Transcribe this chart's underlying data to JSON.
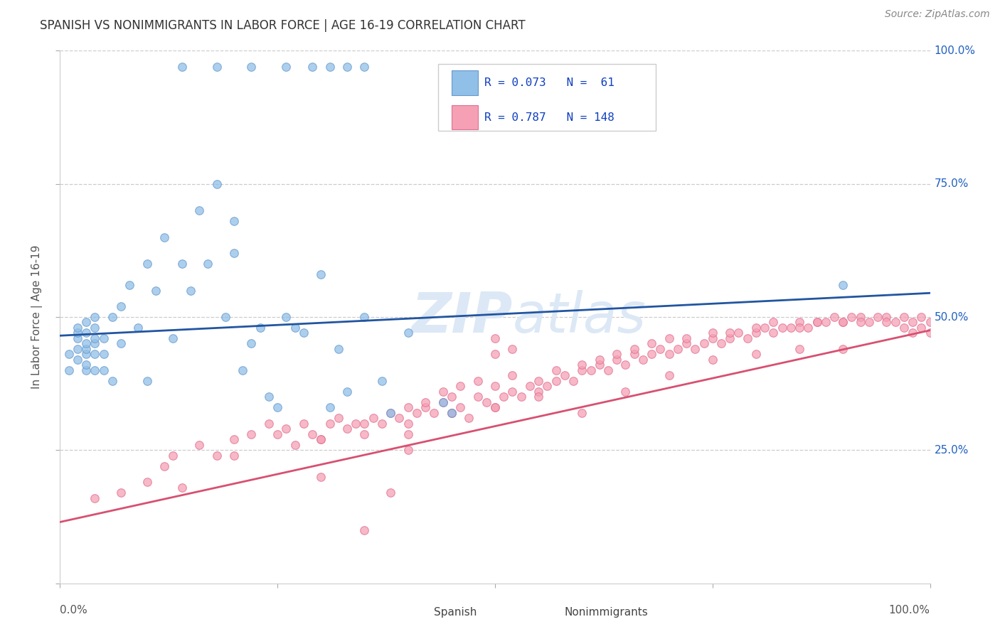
{
  "title": "SPANISH VS NONIMMIGRANTS IN LABOR FORCE | AGE 16-19 CORRELATION CHART",
  "source": "Source: ZipAtlas.com",
  "ylabel": "In Labor Force | Age 16-19",
  "xlim": [
    0.0,
    1.0
  ],
  "ylim": [
    0.0,
    1.0
  ],
  "spanish_color": "#90bfe8",
  "spanish_edge_color": "#6699cc",
  "nonimm_color": "#f5a0b5",
  "nonimm_edge_color": "#e07090",
  "spanish_line_color": "#2255a0",
  "nonimm_line_color": "#d85070",
  "background_color": "#ffffff",
  "grid_color": "#cccccc",
  "title_color": "#333333",
  "right_label_color": "#2060c0",
  "watermark_color": "#dce8f5",
  "legend_text_color": "#1040c0",
  "marker_size": 70,
  "spanish_line_x0": 0.0,
  "spanish_line_y0": 0.465,
  "spanish_line_x1": 1.0,
  "spanish_line_y1": 0.545,
  "nonimm_line_x0": 0.0,
  "nonimm_line_y0": 0.115,
  "nonimm_line_x1": 1.0,
  "nonimm_line_y1": 0.475,
  "spanish_x": [
    0.01,
    0.01,
    0.02,
    0.02,
    0.02,
    0.02,
    0.02,
    0.03,
    0.03,
    0.03,
    0.03,
    0.03,
    0.03,
    0.03,
    0.04,
    0.04,
    0.04,
    0.04,
    0.04,
    0.04,
    0.05,
    0.05,
    0.05,
    0.06,
    0.06,
    0.07,
    0.07,
    0.08,
    0.09,
    0.1,
    0.1,
    0.11,
    0.12,
    0.13,
    0.14,
    0.15,
    0.16,
    0.17,
    0.18,
    0.19,
    0.2,
    0.2,
    0.21,
    0.22,
    0.23,
    0.24,
    0.25,
    0.26,
    0.27,
    0.28,
    0.3,
    0.31,
    0.32,
    0.33,
    0.35,
    0.37,
    0.38,
    0.4,
    0.44,
    0.45,
    0.9
  ],
  "spanish_y": [
    0.4,
    0.43,
    0.42,
    0.44,
    0.46,
    0.47,
    0.48,
    0.4,
    0.41,
    0.43,
    0.44,
    0.45,
    0.47,
    0.49,
    0.4,
    0.43,
    0.45,
    0.46,
    0.48,
    0.5,
    0.4,
    0.43,
    0.46,
    0.38,
    0.5,
    0.45,
    0.52,
    0.56,
    0.48,
    0.38,
    0.6,
    0.55,
    0.65,
    0.46,
    0.6,
    0.55,
    0.7,
    0.6,
    0.75,
    0.5,
    0.62,
    0.68,
    0.4,
    0.45,
    0.48,
    0.35,
    0.33,
    0.5,
    0.48,
    0.47,
    0.58,
    0.33,
    0.44,
    0.36,
    0.5,
    0.38,
    0.32,
    0.47,
    0.34,
    0.32,
    0.56
  ],
  "spanish_top_x": [
    0.14,
    0.18,
    0.22,
    0.26,
    0.29,
    0.31,
    0.33,
    0.35
  ],
  "spanish_top_y": [
    0.97,
    0.97,
    0.97,
    0.97,
    0.97,
    0.97,
    0.97,
    0.97
  ],
  "nonimm_x": [
    0.04,
    0.07,
    0.1,
    0.12,
    0.13,
    0.14,
    0.16,
    0.18,
    0.2,
    0.22,
    0.24,
    0.25,
    0.26,
    0.27,
    0.28,
    0.29,
    0.3,
    0.31,
    0.32,
    0.33,
    0.34,
    0.35,
    0.36,
    0.37,
    0.38,
    0.39,
    0.4,
    0.41,
    0.42,
    0.43,
    0.44,
    0.45,
    0.46,
    0.47,
    0.48,
    0.49,
    0.5,
    0.51,
    0.52,
    0.53,
    0.54,
    0.55,
    0.56,
    0.57,
    0.58,
    0.59,
    0.6,
    0.61,
    0.62,
    0.63,
    0.64,
    0.65,
    0.66,
    0.67,
    0.68,
    0.69,
    0.7,
    0.71,
    0.72,
    0.73,
    0.74,
    0.75,
    0.76,
    0.77,
    0.78,
    0.79,
    0.8,
    0.81,
    0.82,
    0.83,
    0.84,
    0.85,
    0.86,
    0.87,
    0.88,
    0.89,
    0.9,
    0.91,
    0.92,
    0.93,
    0.94,
    0.95,
    0.96,
    0.97,
    0.98,
    0.99,
    1.0,
    0.5,
    0.5,
    0.52,
    0.3,
    0.35,
    0.4,
    0.4,
    0.42,
    0.44,
    0.45,
    0.46,
    0.48,
    0.5,
    0.52,
    0.55,
    0.57,
    0.6,
    0.62,
    0.64,
    0.66,
    0.68,
    0.7,
    0.72,
    0.75,
    0.77,
    0.8,
    0.82,
    0.85,
    0.87,
    0.9,
    0.92,
    0.95,
    0.97,
    0.98,
    0.99,
    1.0,
    0.2,
    0.3,
    0.35,
    0.38,
    0.4,
    0.45,
    0.5,
    0.55,
    0.6,
    0.65,
    0.7,
    0.75,
    0.8,
    0.85,
    0.9
  ],
  "nonimm_y": [
    0.16,
    0.17,
    0.19,
    0.22,
    0.24,
    0.18,
    0.26,
    0.24,
    0.27,
    0.28,
    0.3,
    0.28,
    0.29,
    0.26,
    0.3,
    0.28,
    0.27,
    0.3,
    0.31,
    0.29,
    0.3,
    0.28,
    0.31,
    0.3,
    0.32,
    0.31,
    0.3,
    0.32,
    0.33,
    0.32,
    0.34,
    0.32,
    0.33,
    0.31,
    0.35,
    0.34,
    0.33,
    0.35,
    0.36,
    0.35,
    0.37,
    0.36,
    0.37,
    0.38,
    0.39,
    0.38,
    0.4,
    0.4,
    0.41,
    0.4,
    0.42,
    0.41,
    0.43,
    0.42,
    0.43,
    0.44,
    0.43,
    0.44,
    0.45,
    0.44,
    0.45,
    0.46,
    0.45,
    0.46,
    0.47,
    0.46,
    0.47,
    0.48,
    0.47,
    0.48,
    0.48,
    0.49,
    0.48,
    0.49,
    0.49,
    0.5,
    0.49,
    0.5,
    0.5,
    0.49,
    0.5,
    0.5,
    0.49,
    0.5,
    0.49,
    0.5,
    0.49,
    0.43,
    0.46,
    0.44,
    0.27,
    0.3,
    0.28,
    0.33,
    0.34,
    0.36,
    0.35,
    0.37,
    0.38,
    0.37,
    0.39,
    0.38,
    0.4,
    0.41,
    0.42,
    0.43,
    0.44,
    0.45,
    0.46,
    0.46,
    0.47,
    0.47,
    0.48,
    0.49,
    0.48,
    0.49,
    0.49,
    0.49,
    0.49,
    0.48,
    0.47,
    0.48,
    0.47,
    0.24,
    0.2,
    0.1,
    0.17,
    0.25,
    0.32,
    0.33,
    0.35,
    0.32,
    0.36,
    0.39,
    0.42,
    0.43,
    0.44,
    0.44
  ]
}
